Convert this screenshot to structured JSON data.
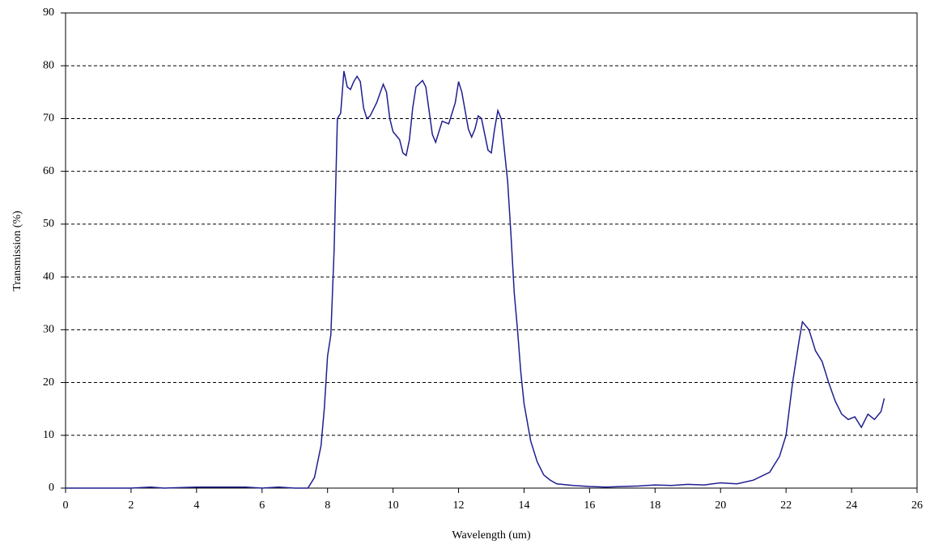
{
  "chart_data": {
    "type": "line",
    "x_label": "Wavelength (um)",
    "y_label": "Transmission (%)",
    "x": [
      0,
      1,
      2,
      2.6,
      3,
      4,
      4.5,
      5,
      5.5,
      6,
      6.5,
      7,
      7.4,
      7.6,
      7.8,
      7.9,
      8.0,
      8.1,
      8.2,
      8.3,
      8.4,
      8.5,
      8.6,
      8.7,
      8.8,
      8.9,
      9.0,
      9.1,
      9.2,
      9.3,
      9.5,
      9.7,
      9.8,
      9.9,
      10.0,
      10.2,
      10.3,
      10.4,
      10.5,
      10.6,
      10.7,
      10.9,
      11.0,
      11.2,
      11.3,
      11.5,
      11.7,
      11.9,
      12.0,
      12.1,
      12.3,
      12.4,
      12.5,
      12.6,
      12.7,
      12.9,
      13.0,
      13.1,
      13.2,
      13.3,
      13.5,
      13.6,
      13.7,
      13.8,
      13.9,
      14.0,
      14.2,
      14.4,
      14.6,
      14.8,
      15.0,
      15.5,
      16.0,
      16.5,
      17.0,
      17.5,
      18.0,
      18.5,
      19.0,
      19.5,
      20.0,
      20.5,
      21.0,
      21.5,
      21.8,
      22.0,
      22.2,
      22.4,
      22.5,
      22.7,
      22.9,
      23.1,
      23.3,
      23.5,
      23.7,
      23.9,
      24.1,
      24.3,
      24.5,
      24.7,
      24.9,
      25.0
    ],
    "series": [
      {
        "color": "#1f1f8f",
        "values": [
          0,
          0,
          0,
          0.2,
          0,
          0.2,
          0.2,
          0.2,
          0.2,
          0,
          0.2,
          0,
          0,
          2,
          8,
          15,
          25,
          29,
          45,
          70,
          71,
          79,
          76,
          75.5,
          77,
          78,
          77,
          72,
          70,
          70.5,
          73,
          76.5,
          75,
          70,
          67.5,
          66,
          63.5,
          63,
          66,
          72,
          76,
          77.2,
          76,
          67,
          65.5,
          69.5,
          69,
          73,
          77,
          75,
          68,
          66.5,
          68,
          70.5,
          70,
          64,
          63.5,
          68,
          71.5,
          70,
          58,
          48,
          37,
          30,
          22,
          16,
          9,
          5,
          2.5,
          1.5,
          0.8,
          0.5,
          0.3,
          0.2,
          0.3,
          0.4,
          0.6,
          0.5,
          0.7,
          0.6,
          1,
          0.8,
          1.5,
          3,
          6,
          10,
          20,
          28,
          31.5,
          30,
          26,
          24,
          20,
          16.5,
          14,
          13,
          13.5,
          11.5,
          14,
          13,
          14.5,
          17
        ]
      }
    ],
    "xlim": [
      0,
      26
    ],
    "xticks": [
      0,
      2,
      4,
      6,
      8,
      10,
      12,
      14,
      16,
      18,
      20,
      22,
      24,
      26
    ],
    "ylim": [
      0,
      90
    ],
    "yticks": [
      0,
      10,
      20,
      30,
      40,
      50,
      60,
      70,
      80,
      90
    ],
    "grid": true
  }
}
